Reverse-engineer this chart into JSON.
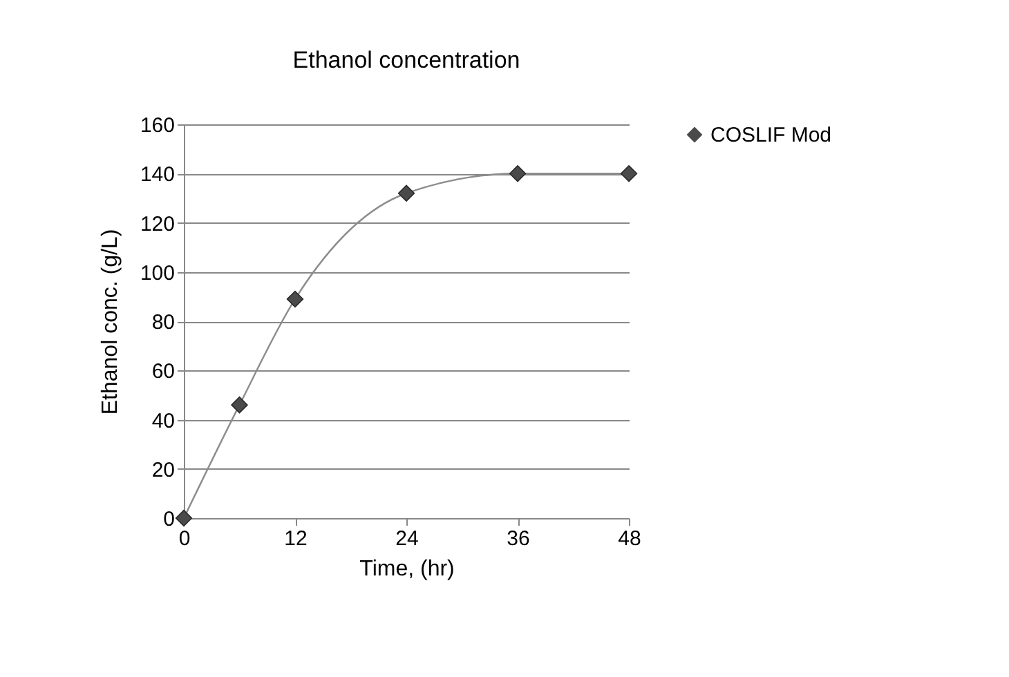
{
  "chart_data": {
    "type": "scatter",
    "title": "Ethanol concentration",
    "xlabel": "Time, (hr)",
    "ylabel": "Ethanol  conc.  (g/L)",
    "x": [
      0,
      6,
      12,
      24,
      36,
      48
    ],
    "series": [
      {
        "name": "COSLIF Mod",
        "color": "#4a4a4a",
        "values": [
          0,
          46,
          89,
          132,
          140,
          140
        ],
        "marker": "diamond"
      },
      {
        "type": "line",
        "color": "#8c8c8c",
        "values": [
          0,
          46,
          89,
          132,
          140,
          140
        ]
      }
    ],
    "xlim": [
      0,
      48
    ],
    "xticks": [
      0,
      12,
      24,
      36,
      48
    ],
    "ylim": [
      0,
      160
    ],
    "yticks": [
      0,
      20,
      40,
      60,
      80,
      100,
      120,
      140,
      160
    ],
    "grid": "y",
    "legend": "right"
  }
}
